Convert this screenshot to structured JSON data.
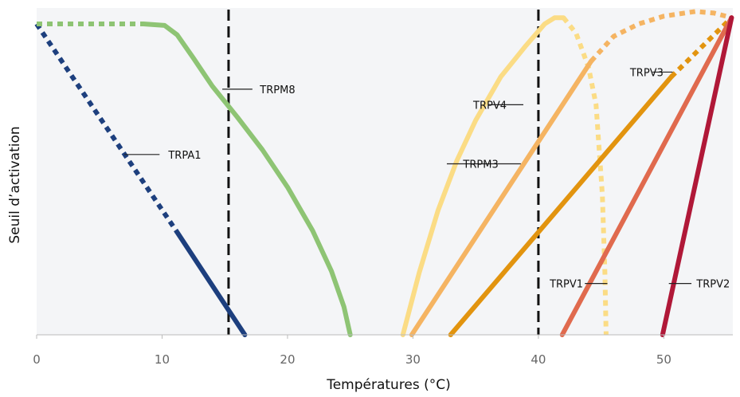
{
  "chart_data": {
    "type": "line",
    "xlabel": "Températures (°C)",
    "ylabel": "Seuil d’activation",
    "xlim": [
      0,
      55.5
    ],
    "xticks": [
      0,
      10,
      20,
      30,
      40,
      50
    ],
    "grid": false,
    "reference_lines": [
      15.3,
      40
    ],
    "series": [
      {
        "name": "TRPA1",
        "color": "#1d3f7e",
        "segments": [
          {
            "style": "dotted",
            "points": [
              [
                0,
                1.0
              ],
              [
                11.2,
                0.33
              ]
            ]
          },
          {
            "style": "solid",
            "points": [
              [
                11.2,
                0.33
              ],
              [
                16.6,
                0.0
              ]
            ]
          }
        ],
        "label_pos": [
          10.5,
          0.58
        ],
        "leader": [
          [
            7.0,
            0.58
          ],
          [
            9.8,
            0.58
          ]
        ]
      },
      {
        "name": "TRPM8",
        "color": "#8ec474",
        "segments": [
          {
            "style": "dotted",
            "points": [
              [
                0,
                1.0
              ],
              [
                8.5,
                1.0
              ]
            ]
          },
          {
            "style": "solid",
            "points": [
              [
                8.5,
                1.0
              ],
              [
                10.2,
                0.995
              ],
              [
                11.2,
                0.965
              ],
              [
                12.5,
                0.89
              ],
              [
                14.0,
                0.8
              ],
              [
                16.0,
                0.7
              ],
              [
                18.0,
                0.595
              ],
              [
                20.0,
                0.475
              ],
              [
                22.0,
                0.335
              ],
              [
                23.5,
                0.205
              ],
              [
                24.5,
                0.09
              ],
              [
                25.0,
                0.0
              ]
            ]
          }
        ],
        "label_pos": [
          17.8,
          0.79
        ],
        "leader": [
          [
            14.8,
            0.79
          ],
          [
            17.2,
            0.79
          ]
        ]
      },
      {
        "name": "TRPV4",
        "color": "#fbdc85",
        "segments": [
          {
            "style": "solid",
            "points": [
              [
                29.2,
                0.0
              ],
              [
                30.5,
                0.2
              ],
              [
                32.0,
                0.4
              ],
              [
                33.5,
                0.56
              ],
              [
                35.0,
                0.69
              ],
              [
                37.0,
                0.83
              ],
              [
                39.0,
                0.93
              ],
              [
                40.5,
                1.0
              ],
              [
                41.3,
                1.02
              ],
              [
                42.0,
                1.02
              ]
            ]
          },
          {
            "style": "dotted",
            "points": [
              [
                42.0,
                1.02
              ],
              [
                43.0,
                0.97
              ],
              [
                44.0,
                0.86
              ],
              [
                44.6,
                0.74
              ],
              [
                45.1,
                0.45
              ],
              [
                45.3,
                0.2
              ],
              [
                45.4,
                0.0
              ]
            ]
          }
        ],
        "label_pos": [
          34.8,
          0.74
        ],
        "leader": [
          [
            36.0,
            0.74
          ],
          [
            38.8,
            0.74
          ]
        ]
      },
      {
        "name": "TRPM3",
        "color": "#f5b462",
        "segments": [
          {
            "style": "solid",
            "points": [
              [
                29.9,
                0.0
              ],
              [
                44.2,
                0.88
              ]
            ]
          },
          {
            "style": "dotted",
            "points": [
              [
                44.2,
                0.88
              ],
              [
                46.0,
                0.96
              ],
              [
                48.0,
                1.0
              ],
              [
                50.0,
                1.025
              ],
              [
                52.5,
                1.04
              ],
              [
                54.0,
                1.035
              ],
              [
                55.4,
                1.02
              ]
            ]
          }
        ],
        "label_pos": [
          34.0,
          0.55
        ],
        "leader": [
          [
            32.7,
            0.55
          ],
          [
            38.6,
            0.55
          ]
        ]
      },
      {
        "name": "TRPV3",
        "color": "#e2940f",
        "segments": [
          {
            "style": "solid",
            "points": [
              [
                33.0,
                0.0
              ],
              [
                50.6,
                0.83
              ]
            ]
          },
          {
            "style": "dotted",
            "points": [
              [
                50.6,
                0.83
              ],
              [
                55.4,
                1.02
              ]
            ]
          }
        ],
        "label_pos": [
          47.3,
          0.845
        ],
        "leader": [
          [
            49.1,
            0.845
          ],
          [
            50.7,
            0.845
          ]
        ]
      },
      {
        "name": "TRPV1",
        "color": "#e06a4e",
        "segments": [
          {
            "style": "solid",
            "points": [
              [
                41.9,
                0.0
              ],
              [
                55.4,
                1.02
              ]
            ]
          }
        ],
        "label_pos": [
          40.9,
          0.165
        ],
        "leader": [
          [
            43.7,
            0.165
          ],
          [
            45.5,
            0.165
          ]
        ]
      },
      {
        "name": "TRPV2",
        "color": "#b01838",
        "segments": [
          {
            "style": "solid",
            "points": [
              [
                49.9,
                0.0
              ],
              [
                55.4,
                1.02
              ]
            ]
          }
        ],
        "label_pos": [
          52.6,
          0.165
        ],
        "leader": [
          [
            50.4,
            0.165
          ],
          [
            52.2,
            0.165
          ]
        ]
      }
    ]
  }
}
